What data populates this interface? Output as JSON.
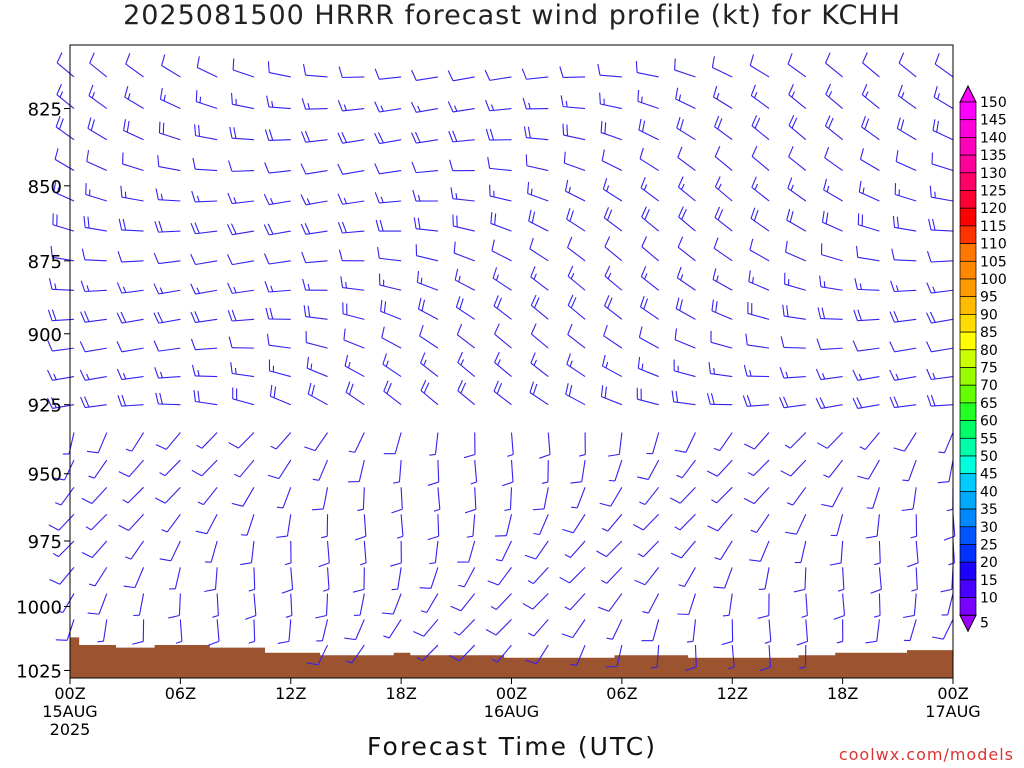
{
  "title": "2025081500 HRRR forecast wind profile (kt) for KCHH",
  "credit": "coolwx.com/models",
  "chart_data": {
    "type": "wind-barb-time-height",
    "xlabel": "Forecast Time (UTC)",
    "ylabel": "",
    "y_scale": "log-pressure",
    "y_units": "hPa",
    "ylim": [
      1028,
      805
    ],
    "x_hours_range": [
      0,
      48
    ],
    "y_ticks": [
      825,
      850,
      875,
      900,
      925,
      950,
      975,
      1000,
      1025
    ],
    "x_ticks": [
      {
        "hour": 0,
        "lines": [
          "00Z",
          "15AUG",
          "2025"
        ]
      },
      {
        "hour": 6,
        "lines": [
          "06Z"
        ]
      },
      {
        "hour": 12,
        "lines": [
          "12Z"
        ]
      },
      {
        "hour": 18,
        "lines": [
          "18Z"
        ]
      },
      {
        "hour": 24,
        "lines": [
          "00Z",
          "16AUG"
        ]
      },
      {
        "hour": 30,
        "lines": [
          "06Z"
        ]
      },
      {
        "hour": 36,
        "lines": [
          "12Z"
        ]
      },
      {
        "hour": 42,
        "lines": [
          "18Z"
        ]
      },
      {
        "hour": 48,
        "lines": [
          "00Z",
          "17AUG"
        ]
      }
    ],
    "colorbar": {
      "values": [
        5,
        10,
        15,
        20,
        25,
        30,
        35,
        40,
        45,
        50,
        55,
        60,
        65,
        70,
        75,
        80,
        85,
        90,
        95,
        100,
        105,
        110,
        115,
        120,
        125,
        130,
        135,
        140,
        145,
        150
      ],
      "colors": [
        "#9900ff",
        "#7a00ff",
        "#4a00ff",
        "#1a00ff",
        "#0033ff",
        "#0055ff",
        "#0088ff",
        "#00aaff",
        "#00ccff",
        "#00ffdd",
        "#00ffaa",
        "#00ff66",
        "#22ff22",
        "#66ff00",
        "#99ff00",
        "#ccff00",
        "#ffff00",
        "#ffdd00",
        "#ffbb00",
        "#ff9900",
        "#ff8800",
        "#ff7700",
        "#ff3300",
        "#ff0000",
        "#ff0033",
        "#ff0066",
        "#ff0099",
        "#ff00bb",
        "#ff00dd",
        "#ff00ff"
      ]
    },
    "surface_pressure": [
      {
        "hour": 0,
        "p": 1012
      },
      {
        "hour": 0.5,
        "p": 1015
      },
      {
        "hour": 2.5,
        "p": 1016
      },
      {
        "hour": 4.6,
        "p": 1015
      },
      {
        "hour": 7.6,
        "p": 1016
      },
      {
        "hour": 10.6,
        "p": 1018
      },
      {
        "hour": 13.6,
        "p": 1019
      },
      {
        "hour": 17.6,
        "p": 1018
      },
      {
        "hour": 18.5,
        "p": 1019
      },
      {
        "hour": 23.6,
        "p": 1020
      },
      {
        "hour": 29.6,
        "p": 1019
      },
      {
        "hour": 33.6,
        "p": 1020
      },
      {
        "hour": 39.6,
        "p": 1019
      },
      {
        "hour": 41.6,
        "p": 1018
      },
      {
        "hour": 45.5,
        "p": 1017
      },
      {
        "hour": 48,
        "p": 1017
      }
    ],
    "barb_hours": [
      0,
      2,
      4,
      6,
      8,
      10,
      12,
      14,
      16,
      18,
      20,
      22,
      24,
      26,
      28,
      30,
      32,
      34,
      36,
      38,
      40,
      42,
      44,
      46,
      48
    ],
    "barb_levels": [
      815,
      825,
      835,
      845,
      855,
      865,
      875,
      885,
      895,
      905,
      915,
      925,
      935,
      945,
      955,
      965,
      975,
      985,
      995,
      1005,
      1015
    ],
    "barb_color": "#3322ee",
    "barb_note_lower": "light winds, mostly from the south to southwest",
    "barb_note_upper": "mostly 5-20 kt from the west to northwest"
  }
}
